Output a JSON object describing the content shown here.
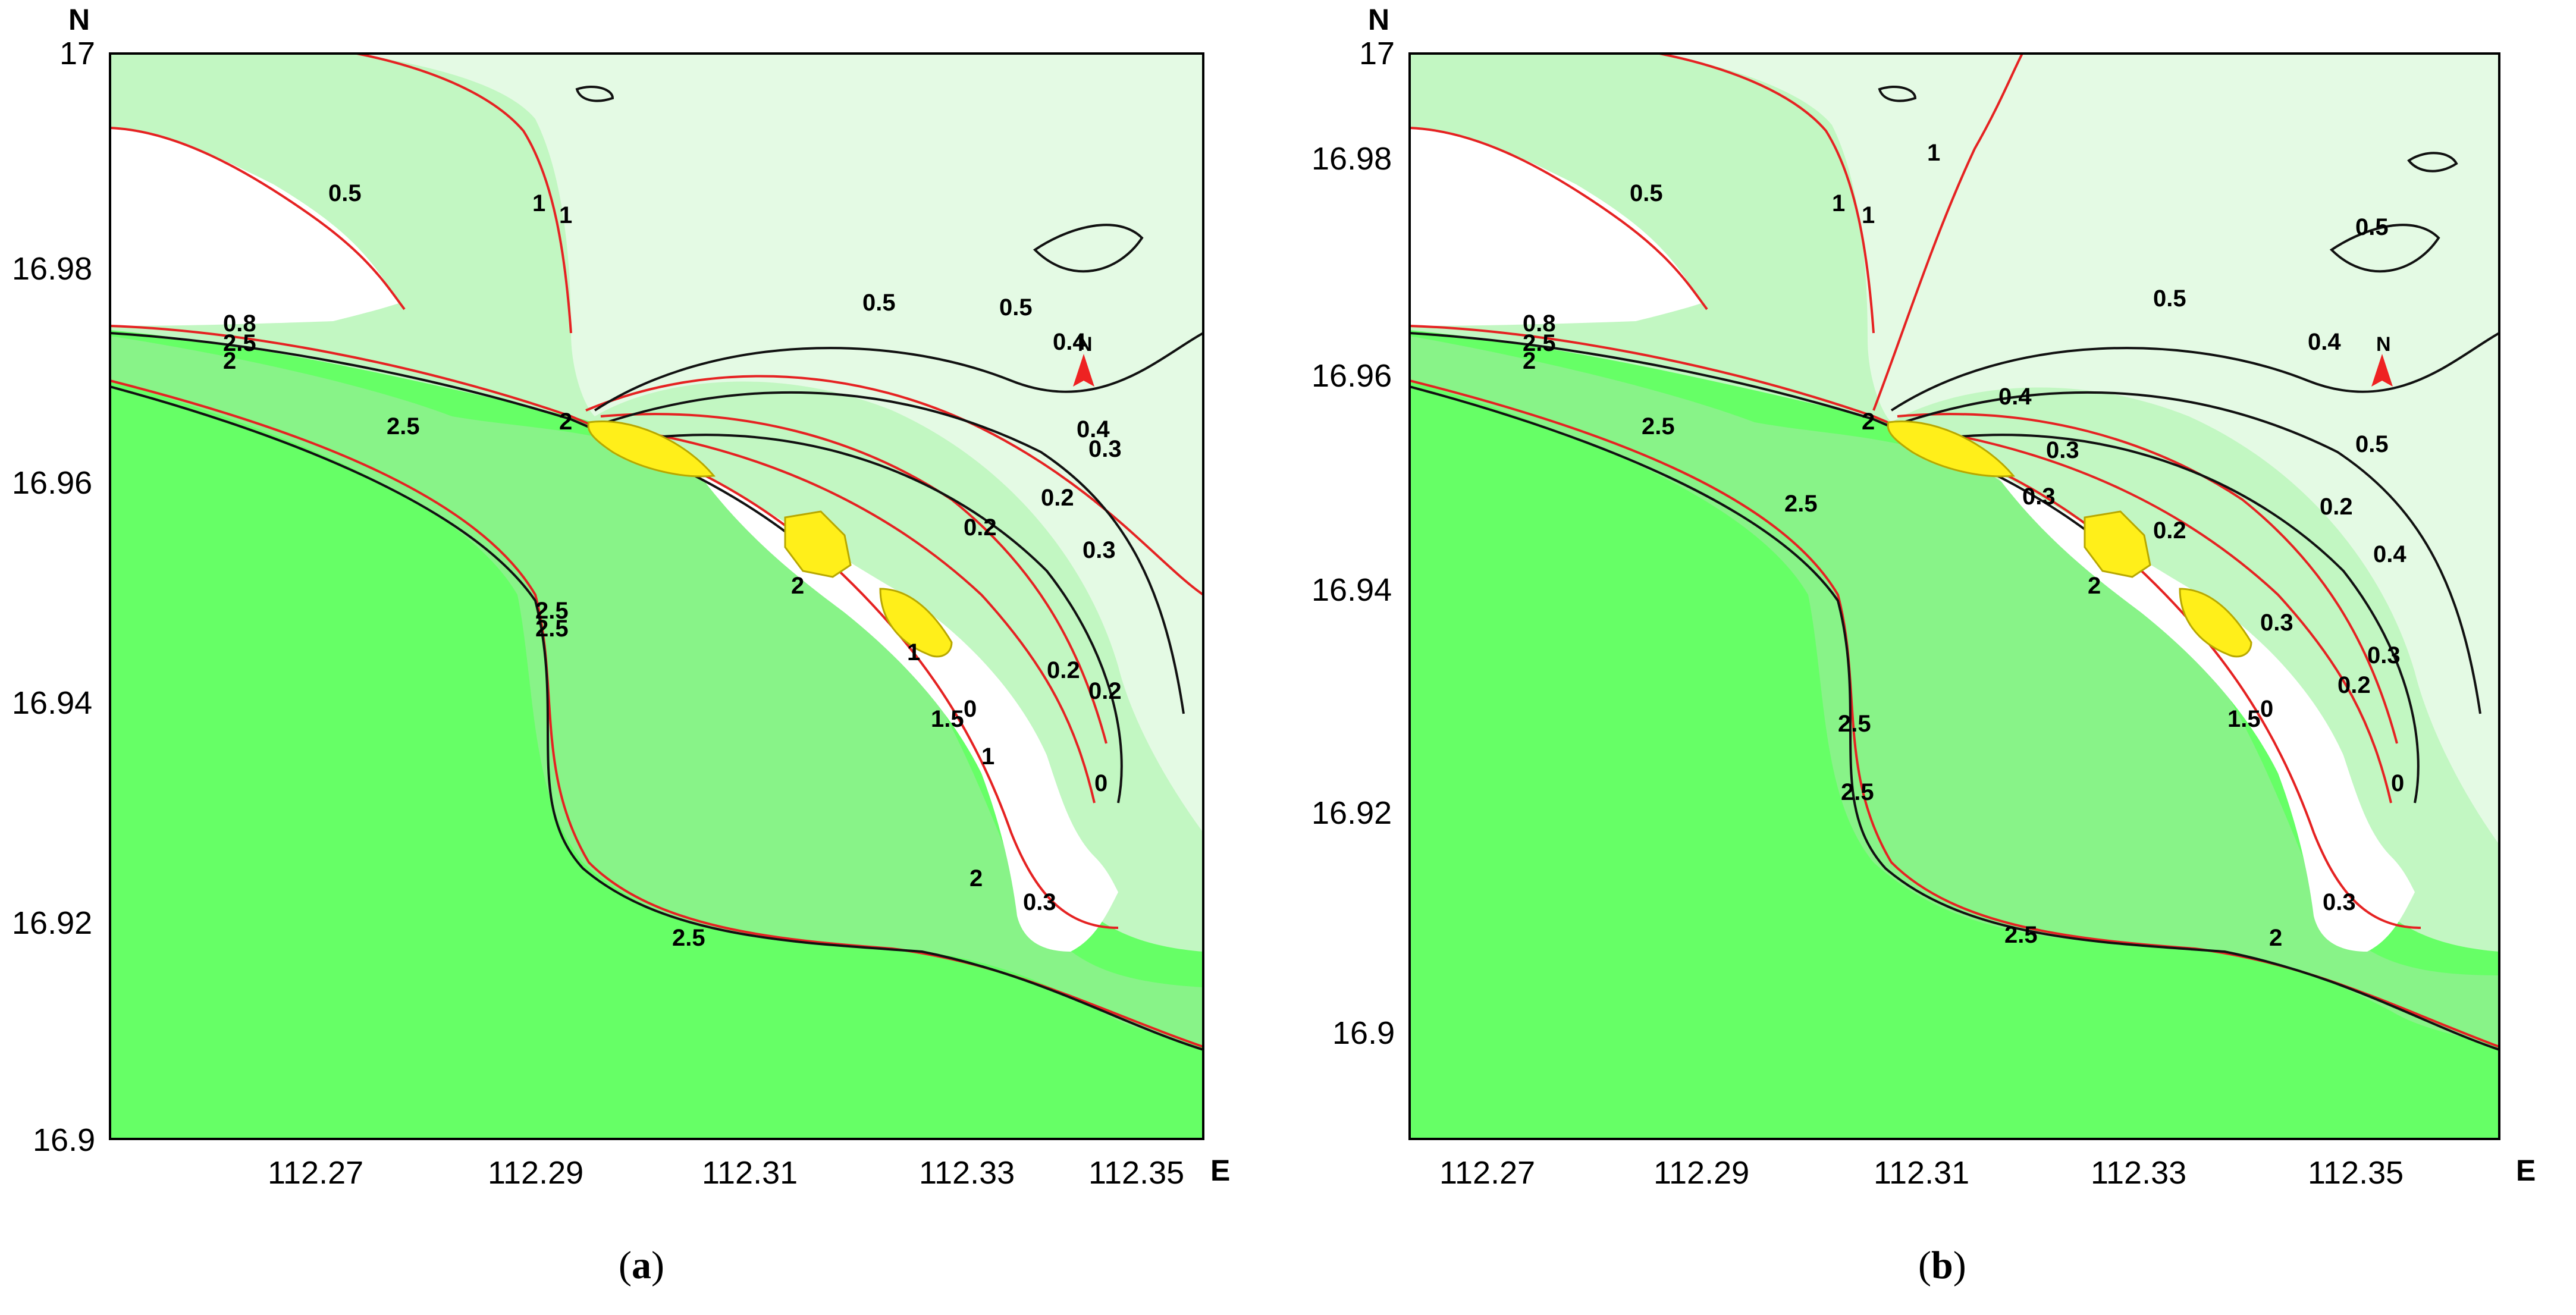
{
  "colors": {
    "sea_deep": "#66ff66",
    "sea_mid": "#88f388",
    "sea_shallow": "#c2f7c2",
    "sea_vshallow": "#e4fae4",
    "land": "#ffffff",
    "contour_black": "#111111",
    "contour_red": "#e52222",
    "island": "#ffef1a",
    "north_arrow": "#ee2222"
  },
  "panels": [
    {
      "id": "a",
      "caption_letter": "a",
      "axis_x_dir": "E",
      "axis_y_dir": "N",
      "x_ticks": [
        "112.27",
        "112.29",
        "112.31",
        "112.33",
        "112.35"
      ],
      "y_ticks": [
        "17",
        "16.98",
        "16.96",
        "16.94",
        "16.92",
        "16.9"
      ],
      "north_label": "N",
      "contour_labels": [
        "0.5",
        "1",
        "1",
        "0.5",
        "0.5",
        "0.4",
        "0.4",
        "0.3",
        "0.2",
        "0.3",
        "0.2",
        "0.2",
        "0.2",
        "0",
        "0",
        "0.3",
        "2",
        "2",
        "2.5",
        "2.5",
        "2.5",
        "2.5",
        "1.5",
        "1",
        "1",
        "2",
        "0.8",
        "2.5",
        "2"
      ]
    },
    {
      "id": "b",
      "caption_letter": "b",
      "axis_x_dir": "E",
      "axis_y_dir": "N",
      "x_ticks": [
        "112.27",
        "112.29",
        "112.31",
        "112.33",
        "112.35"
      ],
      "y_ticks": [
        "17",
        "16.98",
        "16.96",
        "16.94",
        "16.92",
        "16.9"
      ],
      "north_label": "N",
      "contour_labels": [
        "0.5",
        "1",
        "1",
        "1",
        "0.5",
        "0.5",
        "0.4",
        "0.5",
        "0.4",
        "0.3",
        "0.3",
        "0.2",
        "0.2",
        "0.4",
        "0.3",
        "0.2",
        "0.3",
        "0",
        "0",
        "0.3",
        "2",
        "2",
        "2",
        "1.5",
        "2.5",
        "2.5",
        "2.5",
        "2.5",
        "2.5",
        "0.8",
        "2.5",
        "2"
      ]
    }
  ]
}
